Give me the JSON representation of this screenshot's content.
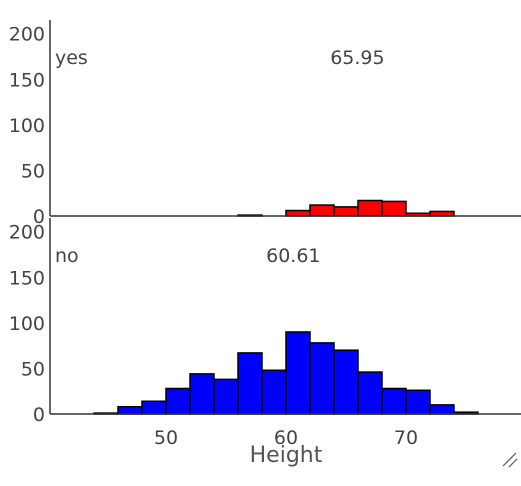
{
  "chart_data": {
    "type": "bar",
    "xlabel": "Height",
    "x_ticks": [
      50,
      60,
      70
    ],
    "y_ticks": [
      0,
      50,
      100,
      150,
      200
    ],
    "bin_width": 2,
    "xlim": [
      41.5,
      79.5
    ],
    "ylim": [
      0,
      215
    ],
    "panels": [
      {
        "label": "yes",
        "mean_label": "65.95",
        "mean_value": 65.95,
        "color": "#ff0000",
        "bins": [
          {
            "x0": 56,
            "count": 1
          },
          {
            "x0": 58,
            "count": 0
          },
          {
            "x0": 60,
            "count": 6
          },
          {
            "x0": 62,
            "count": 12
          },
          {
            "x0": 64,
            "count": 10
          },
          {
            "x0": 66,
            "count": 17
          },
          {
            "x0": 68,
            "count": 16
          },
          {
            "x0": 70,
            "count": 3
          },
          {
            "x0": 72,
            "count": 5
          }
        ]
      },
      {
        "label": "no",
        "mean_label": "60.61",
        "mean_value": 60.61,
        "color": "#0000ff",
        "bins": [
          {
            "x0": 44,
            "count": 1
          },
          {
            "x0": 46,
            "count": 8
          },
          {
            "x0": 48,
            "count": 14
          },
          {
            "x0": 50,
            "count": 28
          },
          {
            "x0": 52,
            "count": 44
          },
          {
            "x0": 54,
            "count": 38
          },
          {
            "x0": 56,
            "count": 67
          },
          {
            "x0": 58,
            "count": 48
          },
          {
            "x0": 60,
            "count": 90
          },
          {
            "x0": 62,
            "count": 78
          },
          {
            "x0": 64,
            "count": 70
          },
          {
            "x0": 66,
            "count": 46
          },
          {
            "x0": 68,
            "count": 28
          },
          {
            "x0": 70,
            "count": 26
          },
          {
            "x0": 72,
            "count": 10
          },
          {
            "x0": 74,
            "count": 2
          }
        ]
      }
    ]
  }
}
